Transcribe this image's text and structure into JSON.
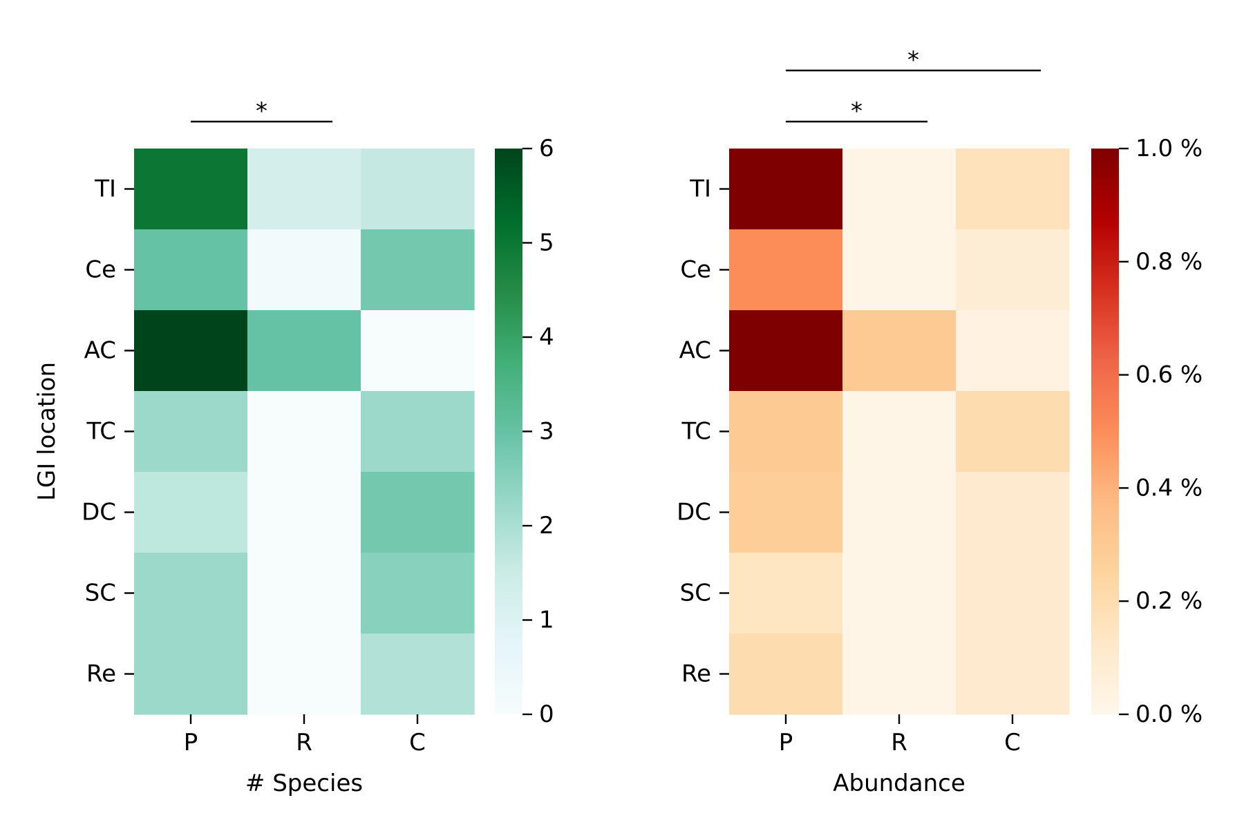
{
  "chart_data": [
    {
      "type": "heatmap",
      "ylabel": "LGI location",
      "xlabel": "# Species",
      "rows": [
        "TI",
        "Ce",
        "AC",
        "TC",
        "DC",
        "SC",
        "Re"
      ],
      "columns": [
        "P",
        "R",
        "C"
      ],
      "values": [
        [
          5,
          1.3,
          1.6
        ],
        [
          3,
          0.2,
          2.8
        ],
        [
          6,
          3,
          0
        ],
        [
          2.2,
          0,
          2.2
        ],
        [
          1.7,
          0,
          2.8
        ],
        [
          2.2,
          0,
          2.5
        ],
        [
          2.2,
          0,
          1.9
        ]
      ],
      "colorbar": {
        "min": 0,
        "max": 6,
        "ticks": [
          "0",
          "1",
          "2",
          "3",
          "4",
          "5",
          "6"
        ],
        "colormap": "greens"
      },
      "significance": [
        {
          "from": "P",
          "to": "R",
          "label": "*"
        }
      ]
    },
    {
      "type": "heatmap",
      "ylabel": "",
      "xlabel": "Abundance",
      "rows": [
        "TI",
        "Ce",
        "AC",
        "TC",
        "DC",
        "SC",
        "Re"
      ],
      "columns": [
        "P",
        "R",
        "C"
      ],
      "values": [
        [
          1.0,
          0.02,
          0.16
        ],
        [
          0.5,
          0.02,
          0.08
        ],
        [
          1.0,
          0.3,
          0.04
        ],
        [
          0.3,
          0.02,
          0.2
        ],
        [
          0.28,
          0.02,
          0.1
        ],
        [
          0.14,
          0.02,
          0.1
        ],
        [
          0.2,
          0.02,
          0.1
        ]
      ],
      "colorbar": {
        "min": 0,
        "max": 1.0,
        "ticks": [
          "0.0 %",
          "0.2 %",
          "0.4 %",
          "0.6 %",
          "0.8 %",
          "1.0 %"
        ],
        "colormap": "oranges"
      },
      "significance": [
        {
          "from": "P",
          "to": "R",
          "label": "*"
        },
        {
          "from": "P",
          "to": "C",
          "label": "*"
        }
      ]
    }
  ],
  "colors": {
    "greens": [
      "#f7fcfd",
      "#e5f5f9",
      "#ccece6",
      "#99d8c9",
      "#66c2a4",
      "#41ae76",
      "#238b45",
      "#006d2c",
      "#00441b"
    ],
    "oranges": [
      "#fff7ec",
      "#fee8c8",
      "#fdd49e",
      "#fdbb84",
      "#fc8d59",
      "#ef6548",
      "#d7301f",
      "#b30000",
      "#7f0000"
    ]
  }
}
